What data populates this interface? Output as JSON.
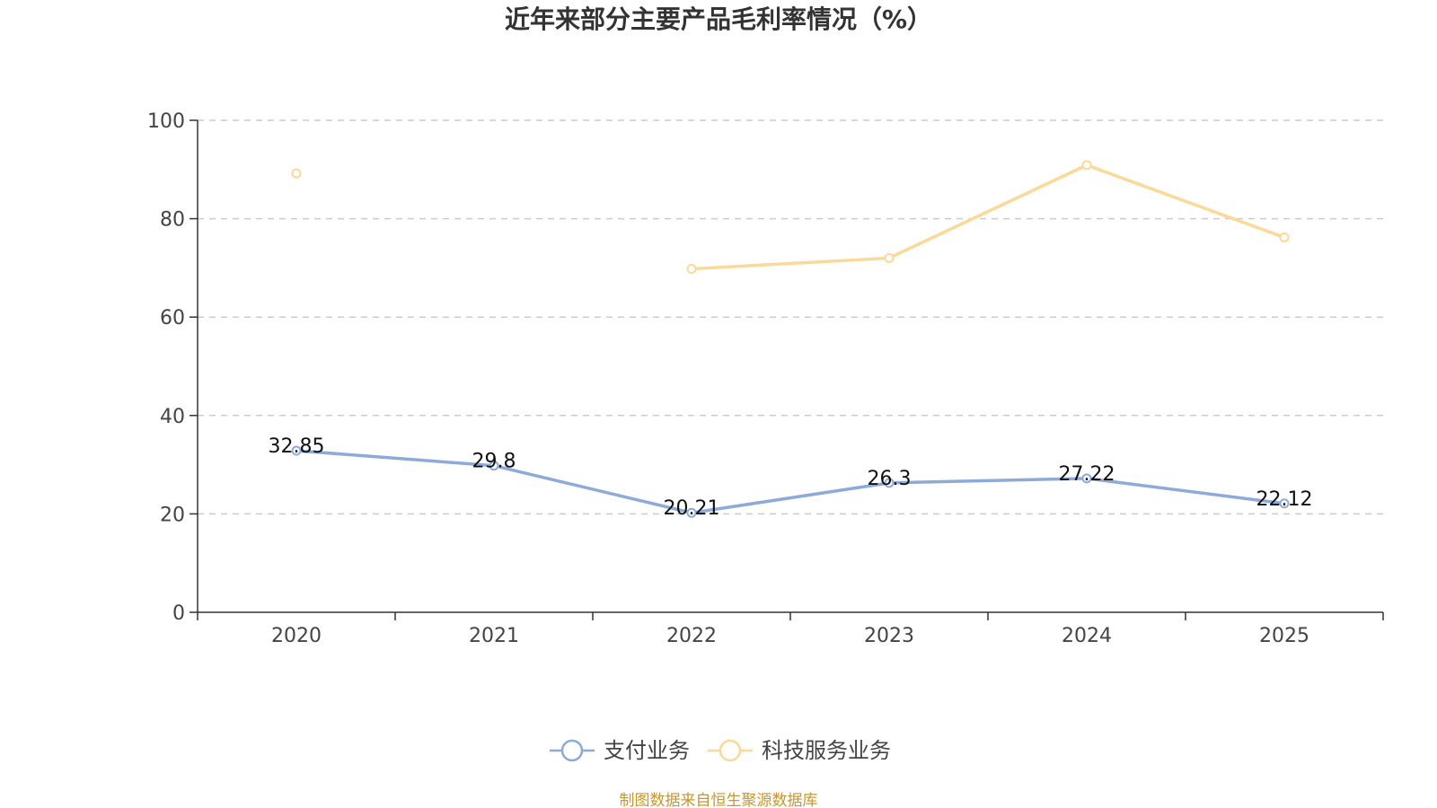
{
  "chart_data": {
    "type": "line",
    "title": "近年来部分主要产品毛利率情况（%）",
    "categories": [
      "2020",
      "2021",
      "2022",
      "2023",
      "2024",
      "2025"
    ],
    "ylim": [
      0,
      100
    ],
    "yticks": [
      0,
      20,
      40,
      60,
      80,
      100
    ],
    "grid": true,
    "legend_position": "bottom-center",
    "series": [
      {
        "name": "支付业务",
        "color": "#8eaad8",
        "values": [
          32.85,
          29.8,
          20.21,
          26.3,
          27.22,
          22.12
        ],
        "labels": [
          "32.85",
          "29.8",
          "20.21",
          "26.3",
          "27.22",
          "22.12"
        ],
        "show_labels": true
      },
      {
        "name": "科技服务业务",
        "color": "#fbd998",
        "values": [
          89.2,
          null,
          69.8,
          72.0,
          90.9,
          76.2
        ],
        "show_labels": false
      }
    ]
  },
  "source": {
    "text": "制图数据来自恒生聚源数据库",
    "color": "#c8962e"
  }
}
